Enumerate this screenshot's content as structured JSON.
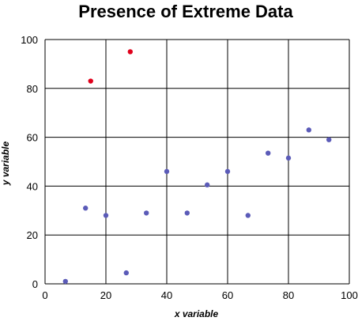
{
  "chart_data": {
    "type": "scatter",
    "title": "Presence of Extreme Data",
    "xlabel": "x variable",
    "ylabel": "y variable",
    "xlim": [
      0,
      100
    ],
    "ylim": [
      0,
      100
    ],
    "xticks": [
      "0",
      "20",
      "40",
      "60",
      "80",
      "100"
    ],
    "yticks": [
      "0",
      "20",
      "40",
      "60",
      "80",
      "100"
    ],
    "grid": true,
    "colors": {
      "normal": "#5b5bb8",
      "extreme": "#e0001b"
    },
    "series": [
      {
        "points": [
          {
            "x": 6.7,
            "y": 1
          },
          {
            "x": 13.3,
            "y": 31
          },
          {
            "x": 20,
            "y": 28
          },
          {
            "x": 26.7,
            "y": 4.5
          },
          {
            "x": 33.3,
            "y": 29
          },
          {
            "x": 40,
            "y": 46
          },
          {
            "x": 46.7,
            "y": 29
          },
          {
            "x": 53.3,
            "y": 40.5
          },
          {
            "x": 60,
            "y": 46
          },
          {
            "x": 66.7,
            "y": 28
          },
          {
            "x": 73.3,
            "y": 53.5
          },
          {
            "x": 80,
            "y": 51.5
          },
          {
            "x": 86.7,
            "y": 63
          },
          {
            "x": 93.3,
            "y": 59
          }
        ]
      },
      {
        "points": [
          {
            "x": 15,
            "y": 83
          },
          {
            "x": 28,
            "y": 95
          }
        ]
      }
    ]
  }
}
